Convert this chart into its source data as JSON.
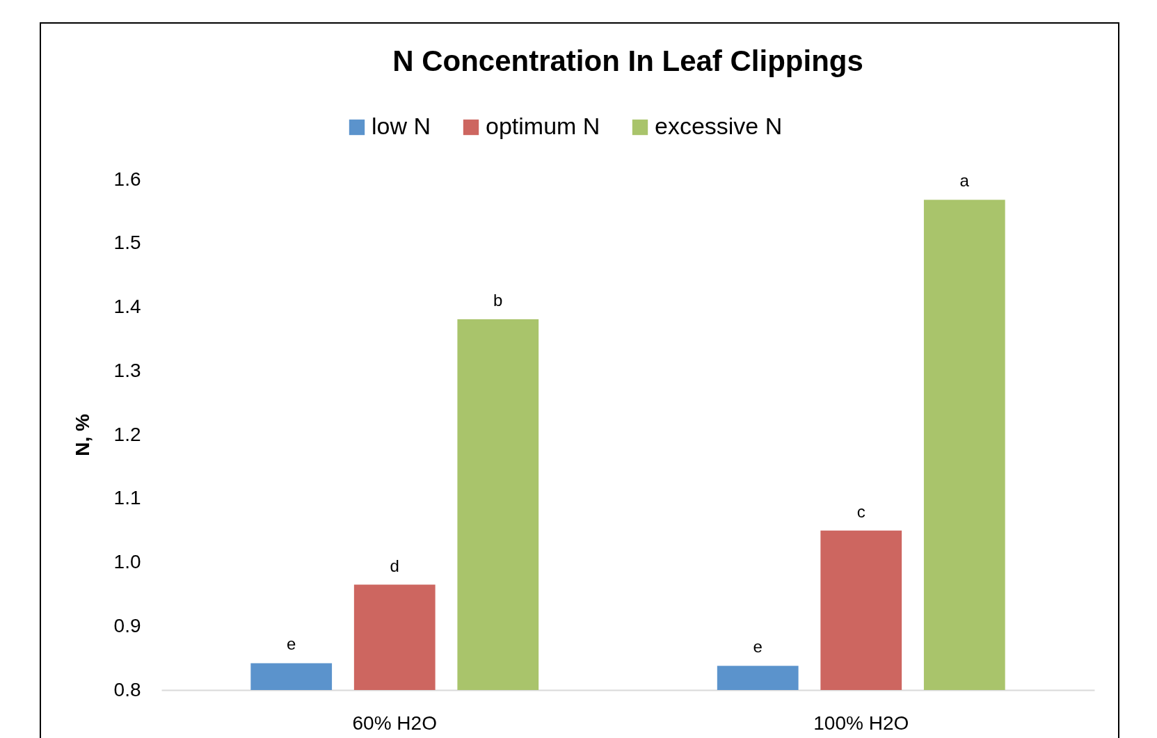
{
  "chart_data": {
    "type": "bar",
    "title": "N Concentration In Leaf Clippings",
    "ylabel": "N, %",
    "categories": [
      "60% H2O",
      "100% H2O"
    ],
    "series": [
      {
        "name": "low N",
        "color": "#5b93cc",
        "values": [
          0.842,
          0.838
        ],
        "value_labels": [
          "e",
          "e"
        ]
      },
      {
        "name": "optimum N",
        "color": "#cd6660",
        "values": [
          0.965,
          1.05
        ],
        "value_labels": [
          "d",
          "c"
        ]
      },
      {
        "name": "excessive N",
        "color": "#a9c46b",
        "values": [
          1.381,
          1.568
        ],
        "value_labels": [
          "b",
          "a"
        ]
      }
    ],
    "ylim": [
      0.8,
      1.6
    ],
    "yticks": [
      0.8,
      0.9,
      {
        "value": 1,
        "label": "1.0"
      },
      1.1,
      1.2,
      1.3,
      1.4,
      1.5,
      1.6
    ],
    "grid": false,
    "legend": "top"
  }
}
